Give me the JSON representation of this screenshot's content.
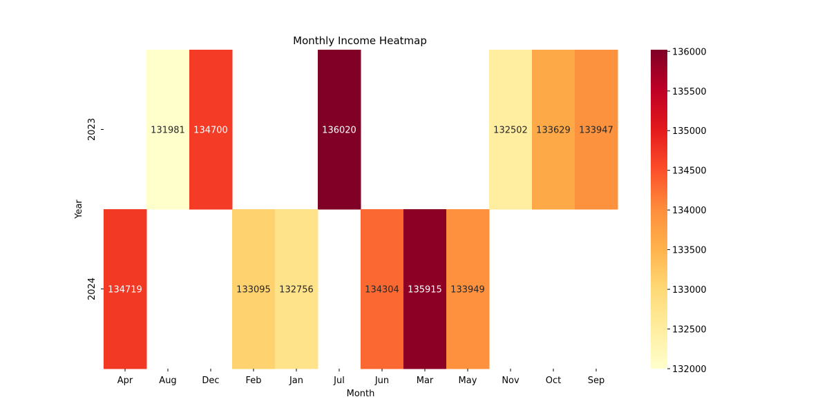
{
  "chart_data": {
    "type": "heatmap",
    "title": "Monthly Income Heatmap",
    "xlabel": "Month",
    "ylabel": "Year",
    "x_categories": [
      "Apr",
      "Aug",
      "Dec",
      "Feb",
      "Jan",
      "Jul",
      "Jun",
      "Mar",
      "May",
      "Nov",
      "Oct",
      "Sep"
    ],
    "y_categories": [
      "2023",
      "2024"
    ],
    "values": [
      [
        null,
        131981,
        134700,
        null,
        null,
        136020,
        null,
        null,
        null,
        132502,
        133629,
        133947
      ],
      [
        134719,
        null,
        null,
        133095,
        132756,
        null,
        134304,
        135915,
        133949,
        null,
        null,
        null
      ]
    ],
    "colorbar": {
      "min": 132000,
      "max": 136020,
      "ticks": [
        132000,
        132500,
        133000,
        133500,
        134000,
        134500,
        135000,
        135500,
        136000
      ],
      "colormap": "YlOrRd"
    },
    "annotations": true
  }
}
